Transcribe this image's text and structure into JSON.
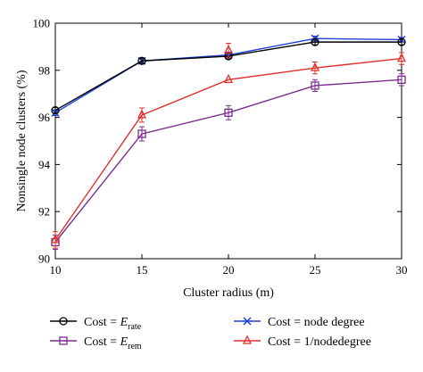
{
  "chart_data": {
    "type": "line",
    "title": "",
    "xlabel": "Cluster radius (m)",
    "ylabel": "Nonsingle node clusters (%)",
    "xlim": [
      10,
      30
    ],
    "ylim": [
      90,
      100
    ],
    "xticks": [
      10,
      15,
      20,
      25,
      30
    ],
    "yticks": [
      90,
      92,
      94,
      96,
      98,
      100
    ],
    "grid": false,
    "legend_position": "bottom",
    "x": [
      10,
      15,
      20,
      25,
      30
    ],
    "series": [
      {
        "id": "erate",
        "legend_prefix": "Cost = ",
        "legend_var": "E",
        "legend_sub": "rate",
        "color": "#000000",
        "marker": "circle",
        "values": [
          96.3,
          98.4,
          98.6,
          99.2,
          99.2
        ],
        "errors": [
          0.12,
          0.1,
          0.12,
          0.12,
          0.12
        ]
      },
      {
        "id": "erem",
        "legend_prefix": "Cost = ",
        "legend_var": "E",
        "legend_sub": "rem",
        "color": "#7b2d8e",
        "marker": "square",
        "values": [
          90.7,
          95.3,
          96.2,
          97.35,
          97.6
        ],
        "errors": [
          0.3,
          0.3,
          0.3,
          0.25,
          0.25
        ]
      },
      {
        "id": "nodedegree",
        "legend_prefix": "",
        "legend_label": "Cost = node degree",
        "color": "#1f3fd8",
        "marker": "x",
        "values": [
          96.2,
          98.4,
          98.65,
          99.35,
          99.3
        ],
        "errors": [
          0.12,
          0.1,
          0.12,
          0.1,
          0.1
        ]
      },
      {
        "id": "invnodedegree",
        "legend_prefix": "",
        "legend_label": "Cost = 1/nodedegree",
        "color": "#e0302c",
        "marker": "triangle",
        "values": [
          90.8,
          96.1,
          97.6,
          98.1,
          98.5
        ],
        "errors": [
          0.35,
          0.3,
          0.0,
          0.25,
          0.25
        ]
      }
    ],
    "extra_points": [
      {
        "series": "invnodedegree",
        "x": 20,
        "y": 98.85,
        "error": 0.3
      }
    ]
  }
}
